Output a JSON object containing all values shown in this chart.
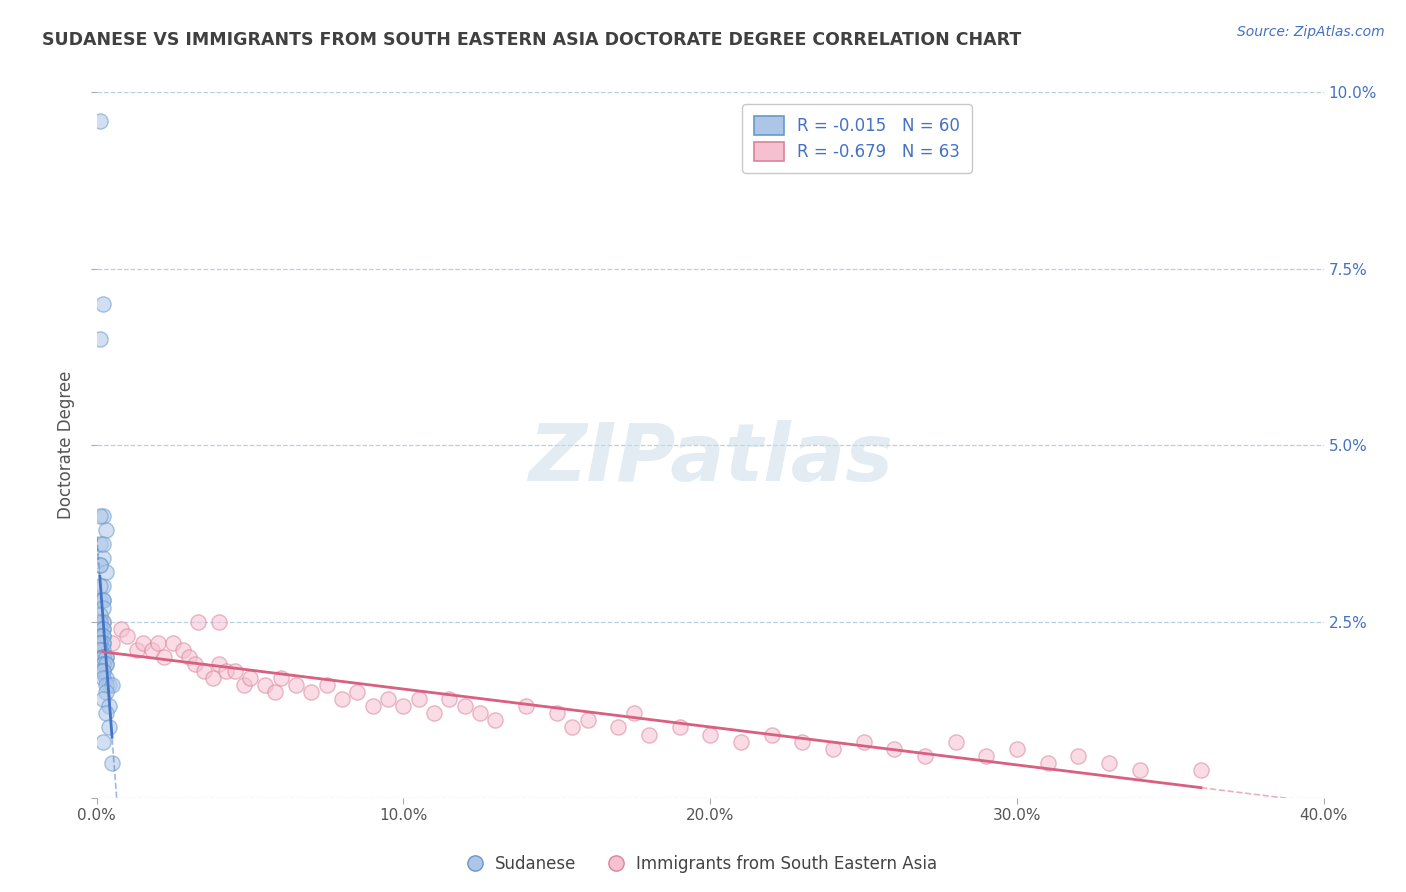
{
  "title": "SUDANESE VS IMMIGRANTS FROM SOUTH EASTERN ASIA DOCTORATE DEGREE CORRELATION CHART",
  "source": "Source: ZipAtlas.com",
  "ylabel": "Doctorate Degree",
  "xlim": [
    0.0,
    0.4
  ],
  "ylim": [
    0.0,
    0.1
  ],
  "xticks": [
    0.0,
    0.1,
    0.2,
    0.3,
    0.4
  ],
  "xtick_labels": [
    "0.0%",
    "10.0%",
    "20.0%",
    "30.0%",
    "40.0%"
  ],
  "yticks": [
    0.0,
    0.025,
    0.05,
    0.075,
    0.1
  ],
  "ytick_labels": [
    "",
    "2.5%",
    "5.0%",
    "7.5%",
    "10.0%"
  ],
  "series1_name": "Sudanese",
  "series1_R": -0.015,
  "series1_N": 60,
  "series1_color": "#adc6e8",
  "series1_edge_color": "#6699cc",
  "series1_line_color": "#4472c4",
  "series2_name": "Immigrants from South Eastern Asia",
  "series2_R": -0.679,
  "series2_N": 63,
  "series2_color": "#f5c0d0",
  "series2_edge_color": "#d9849a",
  "series2_line_color": "#d96080",
  "background_color": "#ffffff",
  "grid_color": "#b8cfe0",
  "title_color": "#404040",
  "source_color": "#4472c4",
  "scatter_alpha": 0.55,
  "scatter_size": 120,
  "series1_x": [
    0.001,
    0.002,
    0.001,
    0.002,
    0.003,
    0.001,
    0.002,
    0.001,
    0.003,
    0.002,
    0.001,
    0.002,
    0.001,
    0.002,
    0.001,
    0.001,
    0.002,
    0.002,
    0.001,
    0.002,
    0.001,
    0.002,
    0.001,
    0.002,
    0.001,
    0.002,
    0.001,
    0.002,
    0.001,
    0.002,
    0.001,
    0.002,
    0.001,
    0.002,
    0.001,
    0.001,
    0.002,
    0.002,
    0.003,
    0.002,
    0.003,
    0.002,
    0.003,
    0.002,
    0.003,
    0.002,
    0.001,
    0.002,
    0.003,
    0.002,
    0.004,
    0.003,
    0.005,
    0.003,
    0.002,
    0.004,
    0.003,
    0.004,
    0.002,
    0.005
  ],
  "series1_y": [
    0.096,
    0.07,
    0.065,
    0.04,
    0.038,
    0.036,
    0.034,
    0.033,
    0.032,
    0.03,
    0.028,
    0.028,
    0.04,
    0.036,
    0.033,
    0.03,
    0.028,
    0.027,
    0.026,
    0.025,
    0.025,
    0.024,
    0.024,
    0.024,
    0.023,
    0.023,
    0.023,
    0.023,
    0.022,
    0.022,
    0.022,
    0.022,
    0.022,
    0.021,
    0.021,
    0.021,
    0.02,
    0.02,
    0.02,
    0.02,
    0.02,
    0.019,
    0.019,
    0.019,
    0.019,
    0.018,
    0.018,
    0.018,
    0.017,
    0.017,
    0.016,
    0.016,
    0.016,
    0.015,
    0.014,
    0.013,
    0.012,
    0.01,
    0.008,
    0.005
  ],
  "series2_x": [
    0.002,
    0.005,
    0.008,
    0.01,
    0.013,
    0.015,
    0.018,
    0.02,
    0.022,
    0.025,
    0.028,
    0.03,
    0.032,
    0.033,
    0.035,
    0.038,
    0.04,
    0.04,
    0.042,
    0.045,
    0.048,
    0.05,
    0.055,
    0.058,
    0.06,
    0.065,
    0.07,
    0.075,
    0.08,
    0.085,
    0.09,
    0.095,
    0.1,
    0.105,
    0.11,
    0.115,
    0.12,
    0.125,
    0.13,
    0.14,
    0.15,
    0.155,
    0.16,
    0.17,
    0.175,
    0.18,
    0.19,
    0.2,
    0.21,
    0.22,
    0.23,
    0.24,
    0.25,
    0.26,
    0.27,
    0.28,
    0.29,
    0.3,
    0.31,
    0.32,
    0.33,
    0.34,
    0.36
  ],
  "series2_y": [
    0.025,
    0.022,
    0.024,
    0.023,
    0.021,
    0.022,
    0.021,
    0.022,
    0.02,
    0.022,
    0.021,
    0.02,
    0.019,
    0.025,
    0.018,
    0.017,
    0.025,
    0.019,
    0.018,
    0.018,
    0.016,
    0.017,
    0.016,
    0.015,
    0.017,
    0.016,
    0.015,
    0.016,
    0.014,
    0.015,
    0.013,
    0.014,
    0.013,
    0.014,
    0.012,
    0.014,
    0.013,
    0.012,
    0.011,
    0.013,
    0.012,
    0.01,
    0.011,
    0.01,
    0.012,
    0.009,
    0.01,
    0.009,
    0.008,
    0.009,
    0.008,
    0.007,
    0.008,
    0.007,
    0.006,
    0.008,
    0.006,
    0.007,
    0.005,
    0.006,
    0.005,
    0.004,
    0.004
  ]
}
